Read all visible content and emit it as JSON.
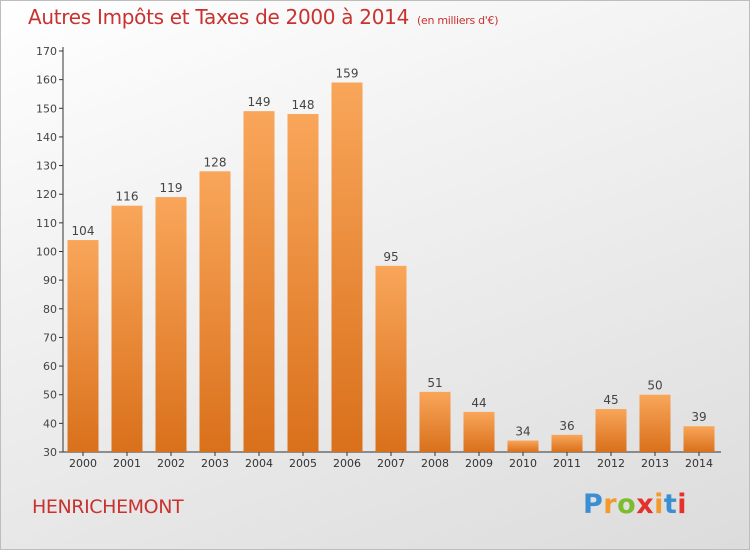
{
  "title": "Autres Impôts et Taxes de 2000 à 2014",
  "subtitle": "(en milliers d'€)",
  "commune": "HENRICHEMONT",
  "logo": {
    "text": "Proxiti",
    "letter_colors": [
      "#3a8fd3",
      "#f39a2b",
      "#7dbb2f",
      "#e4322b",
      "#f39a2b",
      "#3a8fd3",
      "#e4322b"
    ]
  },
  "colors": {
    "bar_top": "#f9a65a",
    "bar_bottom": "#d9701b",
    "text": "#c8322f",
    "axis": "#333333"
  },
  "chart_data": {
    "type": "bar",
    "title": "Autres Impôts et Taxes de 2000 à 2014",
    "subtitle": "(en milliers d'€)",
    "categories": [
      "2000",
      "2001",
      "2002",
      "2003",
      "2004",
      "2005",
      "2006",
      "2007",
      "2008",
      "2009",
      "2010",
      "2011",
      "2012",
      "2013",
      "2014"
    ],
    "values": [
      104,
      116,
      119,
      128,
      149,
      148,
      159,
      95,
      51,
      44,
      34,
      36,
      45,
      50,
      39
    ],
    "ylim": [
      30,
      170
    ],
    "yticks": [
      30,
      40,
      50,
      60,
      70,
      80,
      90,
      100,
      110,
      120,
      130,
      140,
      150,
      160,
      170
    ],
    "grid": false,
    "data_labels": true
  }
}
